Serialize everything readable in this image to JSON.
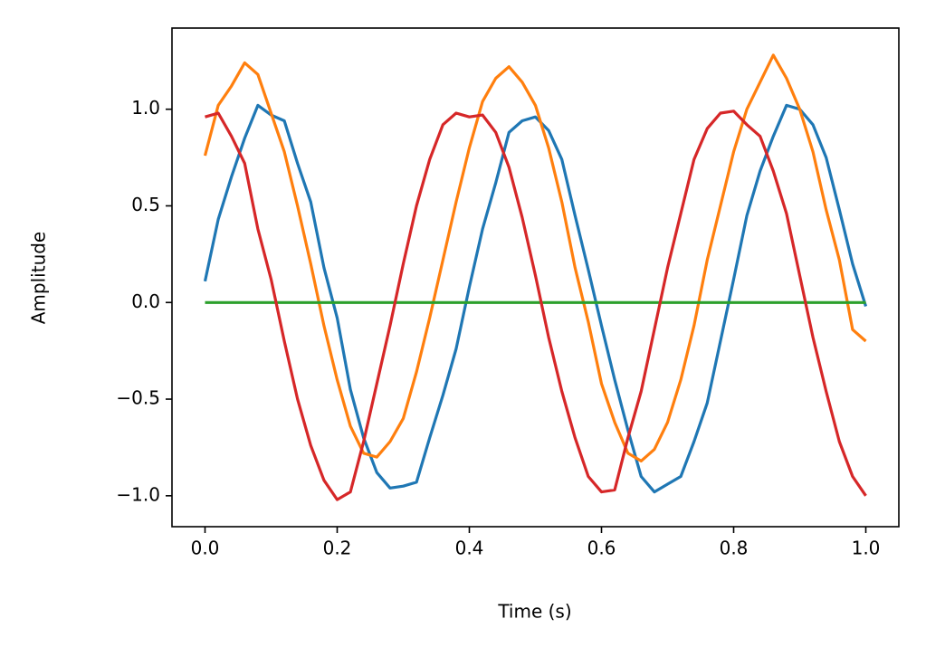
{
  "chart_data": {
    "type": "line",
    "xlabel": "Time (s)",
    "ylabel": "Amplitude",
    "x": [
      0,
      0.02,
      0.04,
      0.06,
      0.08,
      0.1,
      0.12,
      0.14,
      0.16,
      0.18,
      0.2,
      0.22,
      0.24,
      0.26,
      0.28,
      0.3,
      0.32,
      0.34,
      0.36,
      0.38,
      0.4,
      0.42,
      0.44,
      0.46,
      0.48,
      0.5,
      0.52,
      0.54,
      0.56,
      0.58,
      0.6,
      0.62,
      0.64,
      0.66,
      0.68,
      0.7,
      0.72,
      0.74,
      0.76,
      0.78,
      0.8,
      0.82,
      0.84,
      0.86,
      0.88,
      0.9,
      0.92,
      0.94,
      0.96,
      0.98,
      1.0
    ],
    "series": [
      {
        "color": "#1f77b4",
        "values": [
          0.11,
          0.43,
          0.65,
          0.85,
          1.02,
          0.97,
          0.94,
          0.72,
          0.52,
          0.18,
          -0.08,
          -0.45,
          -0.7,
          -0.88,
          -0.96,
          -0.95,
          -0.93,
          -0.7,
          -0.48,
          -0.24,
          0.08,
          0.38,
          0.62,
          0.88,
          0.94,
          0.96,
          0.89,
          0.74,
          0.45,
          0.17,
          -0.12,
          -0.4,
          -0.66,
          -0.9,
          -0.98,
          -0.94,
          -0.9,
          -0.72,
          -0.52,
          -0.2,
          0.12,
          0.45,
          0.68,
          0.86,
          1.02,
          1.0,
          0.92,
          0.75,
          0.48,
          0.2,
          -0.02
        ]
      },
      {
        "color": "#ff7f0e",
        "values": [
          0.76,
          1.02,
          1.12,
          1.24,
          1.18,
          0.98,
          0.78,
          0.5,
          0.2,
          -0.12,
          -0.4,
          -0.64,
          -0.78,
          -0.8,
          -0.72,
          -0.6,
          -0.36,
          -0.08,
          0.22,
          0.52,
          0.8,
          1.04,
          1.16,
          1.22,
          1.14,
          1.02,
          0.8,
          0.52,
          0.18,
          -0.1,
          -0.42,
          -0.62,
          -0.78,
          -0.82,
          -0.76,
          -0.62,
          -0.4,
          -0.12,
          0.22,
          0.5,
          0.78,
          1.0,
          1.14,
          1.28,
          1.16,
          1.0,
          0.78,
          0.48,
          0.22,
          -0.14,
          -0.2
        ]
      },
      {
        "color": "#2ca02c",
        "values": [
          0,
          0,
          0,
          0,
          0,
          0,
          0,
          0,
          0,
          0,
          0,
          0,
          0,
          0,
          0,
          0,
          0,
          0,
          0,
          0,
          0,
          0,
          0,
          0,
          0,
          0,
          0,
          0,
          0,
          0,
          0,
          0,
          0,
          0,
          0,
          0,
          0,
          0,
          0,
          0,
          0,
          0,
          0,
          0,
          0,
          0,
          0,
          0,
          0,
          0,
          0
        ]
      },
      {
        "color": "#d62728",
        "values": [
          0.96,
          0.98,
          0.86,
          0.72,
          0.38,
          0.12,
          -0.2,
          -0.5,
          -0.74,
          -0.92,
          -1.02,
          -0.98,
          -0.72,
          -0.42,
          -0.12,
          0.2,
          0.5,
          0.74,
          0.92,
          0.98,
          0.96,
          0.97,
          0.88,
          0.7,
          0.44,
          0.14,
          -0.18,
          -0.46,
          -0.7,
          -0.9,
          -0.98,
          -0.97,
          -0.7,
          -0.46,
          -0.14,
          0.18,
          0.46,
          0.74,
          0.9,
          0.98,
          0.99,
          0.92,
          0.86,
          0.68,
          0.46,
          0.14,
          -0.18,
          -0.46,
          -0.72,
          -0.9,
          -1.0
        ]
      }
    ],
    "xlim": [
      -0.05,
      1.05
    ],
    "xticks": [
      {
        "value": 0,
        "label": "0.0"
      },
      0.2,
      0.4,
      0.6,
      0.8,
      {
        "value": 1,
        "label": "1.0"
      }
    ],
    "ylim": [
      -1.16,
      1.42
    ],
    "yticks": [
      {
        "value": -1,
        "label": "−1.0"
      },
      {
        "value": -0.5,
        "label": "−0.5"
      },
      {
        "value": 0,
        "label": "0.0"
      },
      0.5,
      {
        "value": 1,
        "label": "1.0"
      }
    ],
    "grid": false
  }
}
